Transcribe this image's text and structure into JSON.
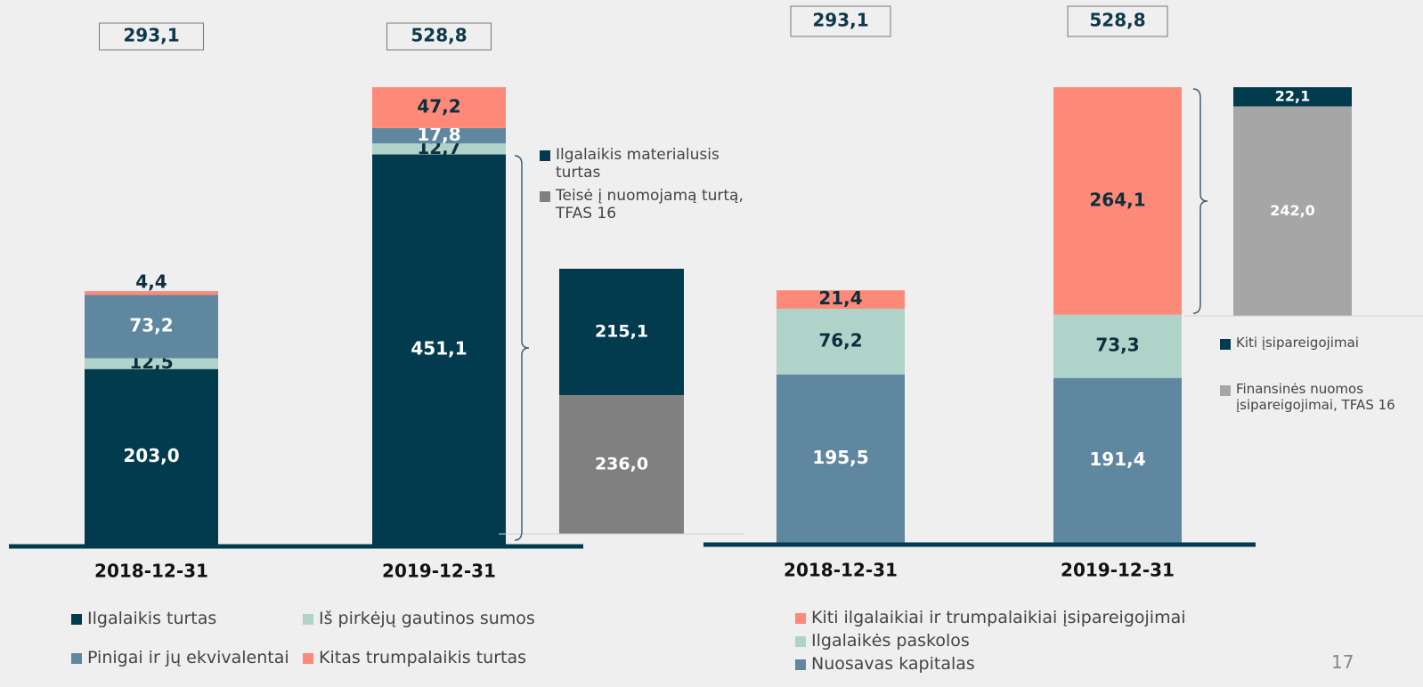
{
  "page_number": "17",
  "chart_data": [
    {
      "type": "bar",
      "stacked": true,
      "categories": [
        "2018-12-31",
        "2019-12-31"
      ],
      "totals": [
        293.1,
        528.8
      ],
      "total_labels": [
        "293,1",
        "528,8"
      ],
      "series": [
        {
          "name": "Ilgalaikis turtas",
          "color": "#023b4e",
          "values": [
            203.0,
            451.1
          ],
          "value_labels": [
            "203,0",
            "451,1"
          ]
        },
        {
          "name": "Iš pirkėjų gautinos sumos",
          "color": "#b0d3c9",
          "values": [
            12.5,
            12.7
          ],
          "value_labels": [
            "12,5",
            "12,7"
          ]
        },
        {
          "name": "Pinigai ir jų ekvivalentai",
          "color": "#5f87a0",
          "values": [
            73.2,
            17.8
          ],
          "value_labels": [
            "73,2",
            "17,8"
          ]
        },
        {
          "name": "Kitas trumpalaikis turtas",
          "color": "#fd8a78",
          "values": [
            4.4,
            47.2
          ],
          "value_labels": [
            "4,4",
            "47,2"
          ]
        }
      ],
      "breakdown": [
        {
          "name": "Ilgalaikis materialusis turtas",
          "color": "#023b4e",
          "value": 215.1,
          "value_label": "215,1"
        },
        {
          "name": "Teisė į nuomojamą turtą, TFAS 16",
          "color": "#808080",
          "value": 236.0,
          "value_label": "236,0"
        }
      ]
    },
    {
      "type": "bar",
      "stacked": true,
      "categories": [
        "2018-12-31",
        "2019-12-31"
      ],
      "totals": [
        293.1,
        528.8
      ],
      "total_labels": [
        "293,1",
        "528,8"
      ],
      "series": [
        {
          "name": "Nuosavas kapitalas",
          "color": "#5f87a0",
          "values": [
            195.5,
            191.4
          ],
          "value_labels": [
            "195,5",
            "191,4"
          ]
        },
        {
          "name": "Ilgalaikės paskolos",
          "color": "#b0d3c9",
          "values": [
            76.2,
            73.3
          ],
          "value_labels": [
            "76,2",
            "73,3"
          ]
        },
        {
          "name": "Kiti ilgalaikiai ir trumpalaikiai įsipareigojimai",
          "color": "#fd8a78",
          "values": [
            21.4,
            264.1
          ],
          "value_labels": [
            "21,4",
            "264,1"
          ]
        }
      ],
      "breakdown": [
        {
          "name": "Kiti įsipareigojimai",
          "color": "#023b4e",
          "value": 22.1,
          "value_label": "22,1"
        },
        {
          "name": "Finansinės nuomos įsipareigojimai, TFAS 16",
          "color": "#a6a6a6",
          "value": 242.0,
          "value_label": "242,0"
        }
      ]
    }
  ]
}
